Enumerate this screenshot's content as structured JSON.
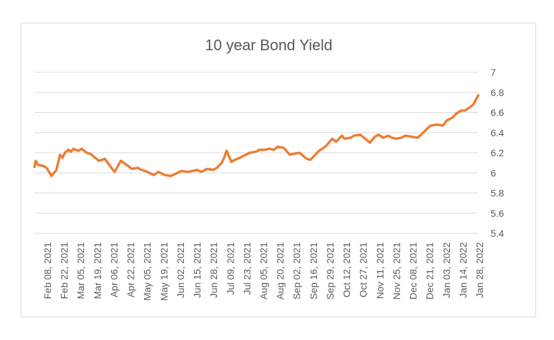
{
  "chart_data": {
    "type": "line",
    "title": "10 year Bond Yield",
    "xlabel": "",
    "ylabel": "",
    "ylim": [
      5.4,
      7
    ],
    "yticks": [
      "7",
      "6.8",
      "6.6",
      "6.4",
      "6.2",
      "6",
      "5.8",
      "5.6",
      "5.4"
    ],
    "grid": true,
    "legend": "none",
    "line_color": "#ED7D31",
    "grid_color": "#d9d9d9",
    "x_tick_labels": [
      "Feb 08, 2021",
      "Feb 22, 2021",
      "Mar 05, 2021",
      "Mar 19, 2021",
      "Apr 06, 2021",
      "Apr 22, 2021",
      "May 05, 2021",
      "May 19, 2021",
      "Jun 02, 2021",
      "Jun 15, 2021",
      "Jun 28, 2021",
      "Jul 09, 2021",
      "Jul 23, 2021",
      "Aug 05, 2021",
      "Aug 20, 2021",
      "Sep 02, 2021",
      "Sep 16, 2021",
      "Sep 29, 2021",
      "Oct 12, 2021",
      "Oct 27, 2021",
      "Nov 11, 2021",
      "Nov 25, 2021",
      "Dec 08, 2021",
      "Dec 21, 2021",
      "Jan 03, 2022",
      "Jan 14, 2022",
      "Jan 28, 2022"
    ],
    "x": [
      "2021-02-01",
      "2021-02-02",
      "2021-02-04",
      "2021-02-08",
      "2021-02-11",
      "2021-02-15",
      "2021-02-17",
      "2021-02-19",
      "2021-02-22",
      "2021-02-24",
      "2021-02-26",
      "2021-03-01",
      "2021-03-03",
      "2021-03-05",
      "2021-03-09",
      "2021-03-12",
      "2021-03-16",
      "2021-03-19",
      "2021-03-23",
      "2021-03-26",
      "2021-03-31",
      "2021-04-06",
      "2021-04-08",
      "2021-04-13",
      "2021-04-19",
      "2021-04-22",
      "2021-04-27",
      "2021-04-30",
      "2021-05-05",
      "2021-05-10",
      "2021-05-14",
      "2021-05-19",
      "2021-05-24",
      "2021-05-28",
      "2021-06-02",
      "2021-06-07",
      "2021-06-11",
      "2021-06-15",
      "2021-06-18",
      "2021-06-23",
      "2021-06-28",
      "2021-07-01",
      "2021-07-05",
      "2021-07-07",
      "2021-07-09",
      "2021-07-13",
      "2021-07-16",
      "2021-07-20",
      "2021-07-23",
      "2021-07-28",
      "2021-08-02",
      "2021-08-05",
      "2021-08-10",
      "2021-08-13",
      "2021-08-17",
      "2021-08-20",
      "2021-08-25",
      "2021-08-30",
      "2021-09-02",
      "2021-09-07",
      "2021-09-10",
      "2021-09-13",
      "2021-09-16",
      "2021-09-20",
      "2021-09-23",
      "2021-09-27",
      "2021-09-29",
      "2021-10-04",
      "2021-10-07",
      "2021-10-12",
      "2021-10-14",
      "2021-10-19",
      "2021-10-22",
      "2021-10-27",
      "2021-11-01",
      "2021-11-04",
      "2021-11-08",
      "2021-11-11",
      "2021-11-15",
      "2021-11-19",
      "2021-11-22",
      "2021-11-25",
      "2021-11-30",
      "2021-12-03",
      "2021-12-08",
      "2021-12-13",
      "2021-12-16",
      "2021-12-21",
      "2021-12-24",
      "2021-12-29",
      "2022-01-03",
      "2022-01-06",
      "2022-01-11",
      "2022-01-14",
      "2022-01-18",
      "2022-01-21",
      "2022-01-25",
      "2022-01-28",
      "2022-02-01"
    ],
    "values": [
      6.06,
      6.12,
      6.08,
      6.07,
      6.05,
      5.97,
      6.0,
      6.03,
      6.18,
      6.15,
      6.2,
      6.23,
      6.21,
      6.24,
      6.22,
      6.24,
      6.2,
      6.19,
      6.15,
      6.12,
      6.14,
      6.04,
      6.01,
      6.12,
      6.07,
      6.04,
      6.05,
      6.03,
      6.01,
      5.98,
      6.01,
      5.98,
      5.97,
      5.99,
      6.02,
      6.01,
      6.02,
      6.03,
      6.01,
      6.04,
      6.03,
      6.05,
      6.1,
      6.15,
      6.22,
      6.11,
      6.13,
      6.15,
      6.17,
      6.2,
      6.21,
      6.23,
      6.23,
      6.24,
      6.23,
      6.26,
      6.25,
      6.18,
      6.19,
      6.2,
      6.17,
      6.14,
      6.13,
      6.18,
      6.22,
      6.25,
      6.27,
      6.34,
      6.31,
      6.37,
      6.34,
      6.35,
      6.37,
      6.38,
      6.33,
      6.3,
      6.36,
      6.38,
      6.35,
      6.37,
      6.35,
      6.34,
      6.35,
      6.37,
      6.36,
      6.35,
      6.38,
      6.44,
      6.47,
      6.48,
      6.47,
      6.52,
      6.55,
      6.59,
      6.62,
      6.62,
      6.65,
      6.68,
      6.77
    ]
  }
}
